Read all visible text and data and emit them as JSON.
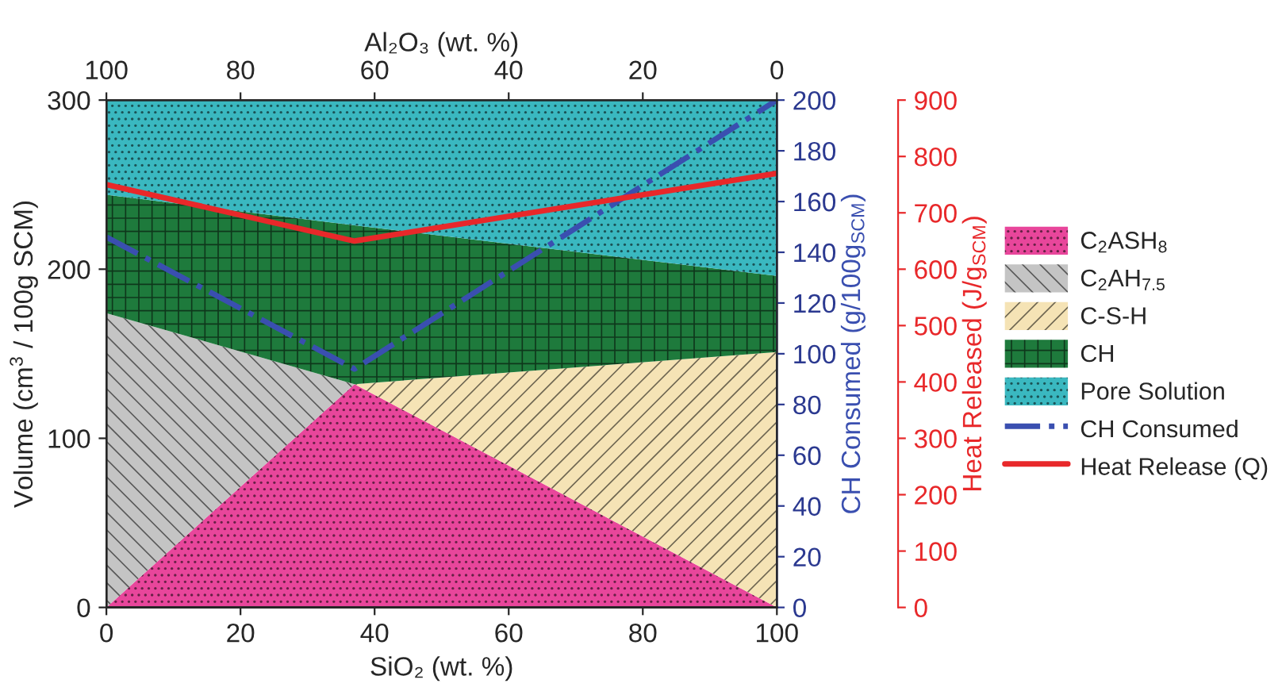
{
  "chart_data": {
    "type": "area",
    "stacked": true,
    "x": [
      0,
      37,
      100
    ],
    "xlabel": "SiO₂ (wt. %)",
    "ylabel": "Volume (cm$^{3}$ / 100g SCM)",
    "y2label": "CH Consumed (g/100g$_{SCM}$)",
    "y3label": "Heat Released (J/g$_{SCM}$)",
    "x2label": "Al₂O₃ (wt. %)",
    "xlim": [
      0,
      100
    ],
    "xticks": [
      0,
      20,
      40,
      60,
      80,
      100
    ],
    "x2lim": [
      100,
      0
    ],
    "x2ticks": [
      100,
      80,
      60,
      40,
      20,
      0
    ],
    "ylim": [
      0,
      300
    ],
    "yticks": [
      0,
      100,
      200,
      300
    ],
    "y2lim": [
      0,
      200
    ],
    "y2ticks": [
      0,
      20,
      40,
      60,
      80,
      100,
      120,
      140,
      160,
      180,
      200
    ],
    "y3lim": [
      0,
      900
    ],
    "y3ticks": [
      0,
      100,
      200,
      300,
      400,
      500,
      600,
      700,
      800,
      900
    ],
    "series": [
      {
        "name": "C$_{2}$ASH$_{8}$",
        "color": "#e8469b",
        "values": [
          0,
          132,
          0
        ]
      },
      {
        "name": "C$_{2}$AH$_{7.5}$",
        "color": "#c4c4c4",
        "values": [
          174,
          0,
          null
        ]
      },
      {
        "name": "C-S-H",
        "color": "#f5e3b5",
        "values": [
          null,
          0,
          151
        ]
      },
      {
        "name": "CH",
        "color": "#1e7a3c",
        "values": [
          70,
          94,
          45
        ]
      },
      {
        "name": "Pore Solution",
        "color": "#3ab8c0",
        "values": [
          56,
          74,
          104
        ]
      },
      {
        "name": "CH Consumed",
        "type": "line",
        "axis": "y2",
        "color": "#3a4fb0",
        "line_style": "dashed",
        "values": [
          146,
          94,
          200
        ]
      },
      {
        "name": "Heat Release (Q)",
        "type": "line",
        "axis": "y3",
        "color": "#e8282a",
        "line_style": "solid",
        "values": [
          750,
          650,
          770
        ]
      }
    ],
    "legend": "right",
    "grid": false
  }
}
